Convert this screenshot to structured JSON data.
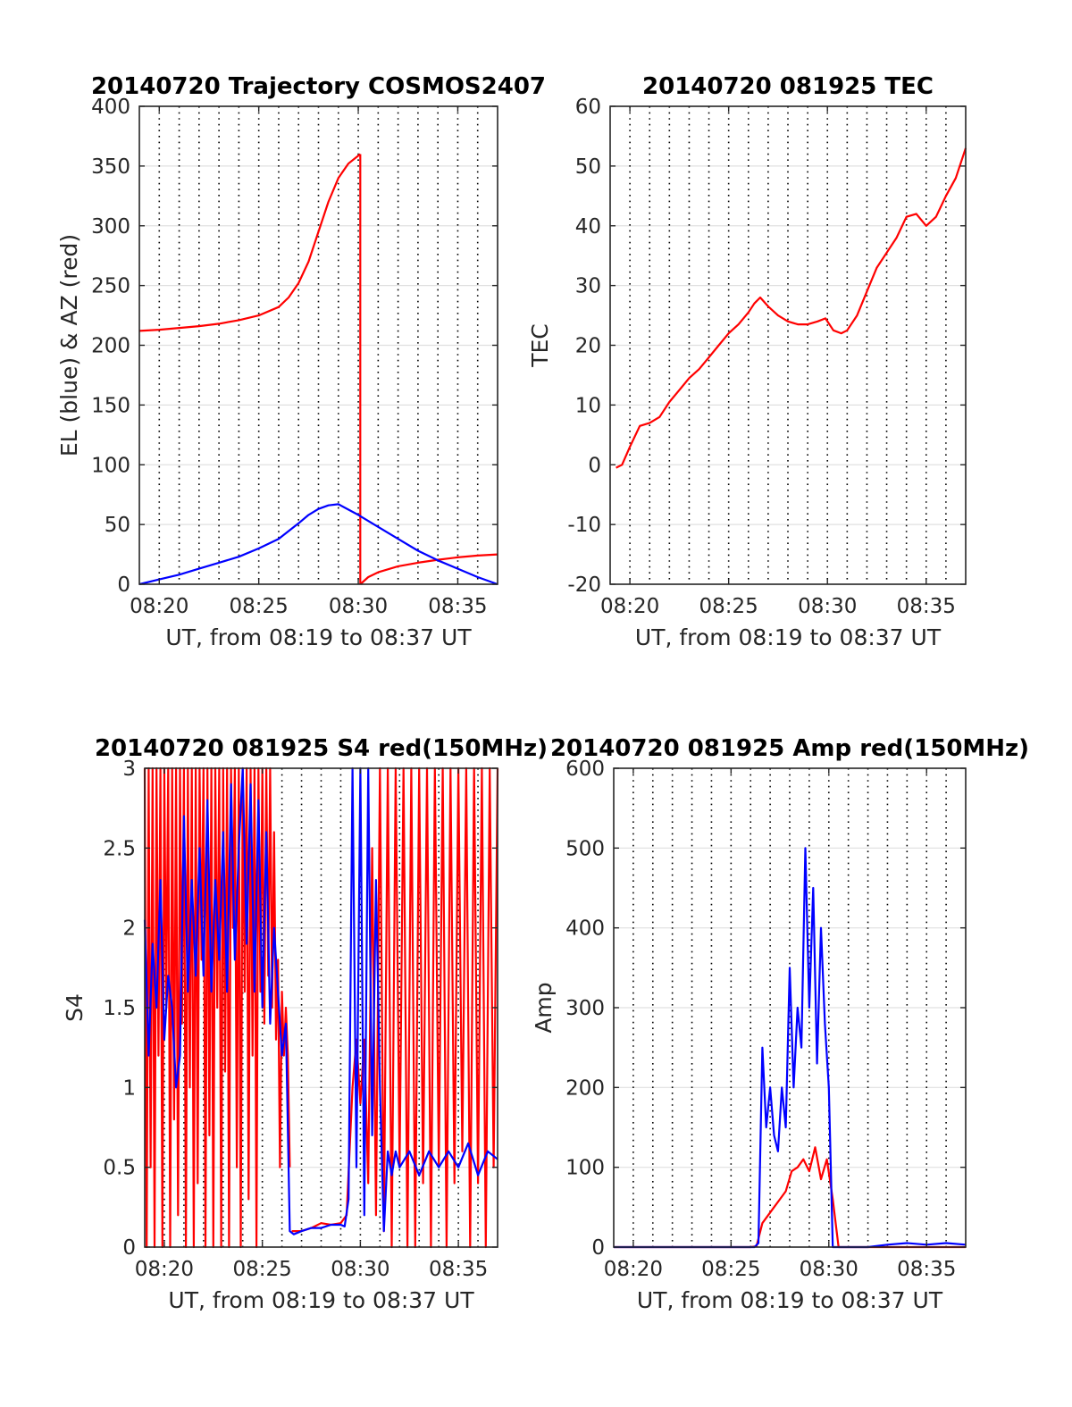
{
  "chart_data": [
    {
      "type": "line",
      "title": "20140720 Trajectory COSMOS2407",
      "xlabel": "UT, from 08:19 to 08:37 UT",
      "ylabel": "EL (blue) & AZ (red)",
      "xlim": [
        0,
        18
      ],
      "ylim": [
        0,
        400
      ],
      "xticks": [
        1,
        6,
        11,
        16
      ],
      "xticklabels": [
        "08:20",
        "08:25",
        "08:30",
        "08:35"
      ],
      "yticks": [
        0,
        50,
        100,
        150,
        200,
        250,
        300,
        350,
        400
      ],
      "yticklabels": [
        "0",
        "50",
        "100",
        "150",
        "200",
        "250",
        "300",
        "350",
        "400"
      ],
      "grid": true,
      "series": [
        {
          "color": "#ff0000",
          "segments": [
            {
              "x": [
                0,
                1,
                2,
                3,
                4,
                5,
                6,
                7,
                7.5,
                8,
                8.5,
                9,
                9.5,
                10,
                10.5,
                11.1
              ],
              "y": [
                212,
                213,
                214.5,
                216,
                218,
                221,
                225,
                232,
                240,
                252,
                270,
                295,
                320,
                340,
                352,
                360
              ]
            },
            {
              "x": [
                11.1,
                11.1
              ],
              "y": [
                360,
                0
              ]
            },
            {
              "x": [
                11.1,
                11.5,
                12,
                13,
                14,
                15,
                16,
                17,
                18
              ],
              "y": [
                0,
                6,
                10,
                15,
                18,
                20.5,
                22.5,
                24,
                25
              ]
            }
          ]
        },
        {
          "color": "#0000ff",
          "segments": [
            {
              "x": [
                0,
                1,
                2,
                3,
                4,
                5,
                6,
                7,
                8,
                8.5,
                9,
                9.5,
                10,
                11,
                12,
                13,
                14,
                15,
                16,
                17,
                18
              ],
              "y": [
                0,
                4,
                8,
                13,
                18,
                23,
                30,
                38,
                51,
                58,
                63,
                66,
                67,
                58,
                48,
                38,
                28,
                20,
                13,
                6,
                0
              ]
            }
          ]
        }
      ]
    },
    {
      "type": "line",
      "title": "20140720 081925 TEC",
      "xlabel": "UT, from 08:19 to 08:37 UT",
      "ylabel": "TEC",
      "xlim": [
        0,
        18
      ],
      "ylim": [
        -20,
        60
      ],
      "xticks": [
        1,
        6,
        11,
        16
      ],
      "xticklabels": [
        "08:20",
        "08:25",
        "08:30",
        "08:35"
      ],
      "yticks": [
        -20,
        -10,
        0,
        10,
        20,
        30,
        40,
        50,
        60
      ],
      "yticklabels": [
        "-20",
        "-10",
        "0",
        "10",
        "20",
        "30",
        "40",
        "50",
        "60"
      ],
      "grid": true,
      "series": [
        {
          "color": "#ff0000",
          "segments": [
            {
              "x": [
                0.3,
                0.6,
                1,
                1.5,
                2,
                2.5,
                3,
                3.5,
                4,
                4.5,
                5,
                5.5,
                6,
                6.5,
                7,
                7.3,
                7.6,
                8,
                8.5,
                9,
                9.5,
                10,
                10.5,
                10.9,
                11.3,
                11.7,
                12,
                12.5,
                13,
                13.5,
                14,
                14.5,
                15,
                15.5,
                16,
                16.5,
                17,
                17.5,
                18
              ],
              "y": [
                -0.5,
                0,
                3,
                6.5,
                7,
                8,
                10.5,
                12.5,
                14.5,
                16,
                18,
                20,
                22,
                23.5,
                25.5,
                27,
                28,
                26.5,
                25,
                24,
                23.5,
                23.5,
                24,
                24.5,
                22.5,
                22,
                22.5,
                25,
                29,
                33,
                35.5,
                38,
                41.5,
                42,
                40,
                41.5,
                45,
                48,
                53
              ]
            }
          ]
        }
      ]
    },
    {
      "type": "line",
      "title": "20140720 081925 S4 red(150MHz)",
      "xlabel": "UT, from 08:19 to 08:37 UT",
      "ylabel": "S4",
      "xlim": [
        0,
        18
      ],
      "ylim": [
        0,
        3
      ],
      "xticks": [
        1,
        6,
        11,
        16
      ],
      "xticklabels": [
        "08:20",
        "08:25",
        "08:30",
        "08:35"
      ],
      "yticks": [
        0,
        0.5,
        1,
        1.5,
        2,
        2.5,
        3
      ],
      "yticklabels": [
        "0",
        "0.5",
        "1",
        "1.5",
        "2",
        "2.5",
        "3"
      ],
      "grid": true,
      "series": [
        {
          "color": "#ff0000",
          "segments": [
            {
              "x": [
                0,
                0.1,
                0.2,
                0.3,
                0.4,
                0.5,
                0.6,
                0.7,
                0.8,
                0.9,
                1,
                1.1,
                1.2,
                1.3,
                1.4,
                1.5,
                1.6,
                1.7,
                1.8,
                1.9,
                2,
                2.1,
                2.2,
                2.3,
                2.4,
                2.5,
                2.6,
                2.7,
                2.8,
                2.9,
                3,
                3.1,
                3.2,
                3.3,
                3.4,
                3.5,
                3.6,
                3.7,
                3.8,
                3.9,
                4,
                4.1,
                4.2,
                4.3,
                4.4,
                4.5,
                4.6,
                4.7,
                4.8,
                4.9,
                5,
                5.1,
                5.2,
                5.3,
                5.4,
                5.5,
                5.6,
                5.7,
                5.8,
                5.9,
                6,
                6.1,
                6.2,
                6.3,
                6.4,
                6.5,
                6.6,
                6.7,
                6.8,
                6.9,
                7,
                7.1,
                7.2,
                7.3,
                7.4
              ],
              "y": [
                3,
                0,
                3,
                0.5,
                3,
                0,
                3,
                1.2,
                3,
                0,
                3,
                1.5,
                3,
                0,
                3,
                0.8,
                3,
                0.2,
                3,
                1.4,
                3,
                0,
                3,
                1,
                3,
                0,
                3,
                0.4,
                3,
                1.8,
                3,
                0,
                3,
                0.7,
                3,
                0,
                3,
                1.5,
                3,
                0,
                3,
                1.1,
                3,
                0,
                3,
                2,
                3,
                0.5,
                3,
                0,
                3,
                1.6,
                3,
                0.3,
                3,
                1.2,
                3,
                0,
                3,
                1.6,
                3,
                1.4,
                3,
                1.7,
                3,
                1.5,
                2.6,
                1.3,
                1.8,
                0.5,
                1.6,
                1.2,
                1.5,
                1.2,
                0.5
              ]
            },
            {
              "x": [
                7.5,
                8,
                8.5,
                9,
                9.5,
                10,
                10.3,
                10.6,
                10.8,
                11,
                11.2,
                11.4,
                11.6,
                11.8,
                12,
                12.2,
                12.4,
                12.6,
                12.8,
                13,
                13.2,
                13.4,
                13.6,
                13.8,
                14,
                14.2,
                14.4,
                14.6,
                14.8,
                15,
                15.2,
                15.4,
                15.6,
                15.8,
                16,
                16.2,
                16.4,
                16.6,
                16.8,
                17,
                17.2,
                17.4,
                17.6,
                17.8,
                18
              ],
              "y": [
                0.1,
                0.1,
                0.12,
                0.15,
                0.14,
                0.15,
                0.2,
                1,
                1.3,
                0.9,
                1.3,
                0.4,
                2.5,
                0.2,
                3,
                0.1,
                3,
                0,
                3,
                0.5,
                3,
                0,
                3,
                0,
                3,
                0.4,
                3,
                0,
                3,
                0.5,
                3,
                0,
                3,
                0.4,
                3,
                0.6,
                3,
                0,
                3,
                0.4,
                3,
                0,
                3,
                0.5,
                3
              ]
            }
          ]
        },
        {
          "color": "#0000ff",
          "segments": [
            {
              "x": [
                0,
                0.2,
                0.4,
                0.6,
                0.8,
                1,
                1.2,
                1.4,
                1.6,
                1.8,
                2,
                2.2,
                2.4,
                2.6,
                2.8,
                3,
                3.2,
                3.4,
                3.6,
                3.8,
                4,
                4.2,
                4.4,
                4.6,
                4.8,
                5,
                5.2,
                5.4,
                5.6,
                5.8,
                6,
                6.2,
                6.4,
                6.6,
                6.8,
                7,
                7.2,
                7.4,
                7.6,
                8,
                8.5,
                9,
                9.5,
                10,
                10.2,
                10.4,
                10.6,
                10.8,
                11,
                11.2,
                11.4,
                11.6,
                11.8,
                12,
                12.2,
                12.4,
                12.6,
                12.8,
                13,
                13.5,
                14,
                14.5,
                15,
                15.5,
                16,
                16.5,
                17,
                17.5,
                18
              ],
              "y": [
                2.05,
                1.2,
                1.9,
                1.5,
                2.3,
                1.3,
                1.7,
                1.5,
                1,
                1.2,
                2.7,
                1.6,
                2.3,
                1.7,
                2.5,
                1.7,
                2.8,
                1.6,
                2.3,
                1.8,
                2.6,
                1.6,
                2.9,
                1.8,
                2.5,
                3,
                1.9,
                2.9,
                1.6,
                2.8,
                1.5,
                2.6,
                1.4,
                2,
                1.6,
                1.2,
                1.4,
                0.1,
                0.08,
                0.1,
                0.12,
                0.12,
                0.14,
                0.14,
                0.13,
                0.3,
                3,
                0.5,
                3,
                0.2,
                3,
                0.7,
                2.3,
                1,
                0.1,
                0.6,
                0.45,
                0.6,
                0.5,
                0.6,
                0.45,
                0.6,
                0.5,
                0.6,
                0.5,
                0.65,
                0.45,
                0.6,
                0.55
              ]
            }
          ]
        }
      ]
    },
    {
      "type": "line",
      "title": "20140720 081925 Amp red(150MHz)",
      "xlabel": "UT, from 08:19 to 08:37 UT",
      "ylabel": "Amp",
      "xlim": [
        0,
        18
      ],
      "ylim": [
        0,
        600
      ],
      "xticks": [
        1,
        6,
        11,
        16
      ],
      "xticklabels": [
        "08:20",
        "08:25",
        "08:30",
        "08:35"
      ],
      "yticks": [
        0,
        100,
        200,
        300,
        400,
        500,
        600
      ],
      "yticklabels": [
        "0",
        "100",
        "200",
        "300",
        "400",
        "500",
        "600"
      ],
      "grid": true,
      "series": [
        {
          "color": "#ff0000",
          "segments": [
            {
              "x": [
                0,
                7,
                7.3,
                7.6,
                7.9,
                8.2,
                8.5,
                8.8,
                9.1,
                9.4,
                9.7,
                10,
                10.3,
                10.6,
                10.9,
                11.2,
                11.5,
                12,
                14,
                16,
                18
              ],
              "y": [
                0,
                0,
                1,
                30,
                40,
                50,
                60,
                70,
                95,
                100,
                110,
                95,
                125,
                85,
                110,
                60,
                0,
                0,
                0,
                0,
                0
              ]
            }
          ]
        },
        {
          "color": "#0000ff",
          "segments": [
            {
              "x": [
                0,
                7,
                7.2,
                7.4,
                7.6,
                7.8,
                8,
                8.2,
                8.4,
                8.6,
                8.8,
                9,
                9.2,
                9.4,
                9.6,
                9.8,
                10,
                10.2,
                10.4,
                10.6,
                10.8,
                11,
                11.2,
                11.4,
                11.6,
                12,
                13,
                14,
                15,
                16,
                17,
                18
              ],
              "y": [
                0,
                0,
                0,
                5,
                250,
                150,
                200,
                140,
                120,
                200,
                150,
                350,
                200,
                300,
                250,
                500,
                300,
                450,
                230,
                400,
                280,
                200,
                0,
                0,
                0,
                0,
                0,
                3,
                5,
                3,
                5,
                3
              ]
            }
          ]
        }
      ]
    }
  ]
}
